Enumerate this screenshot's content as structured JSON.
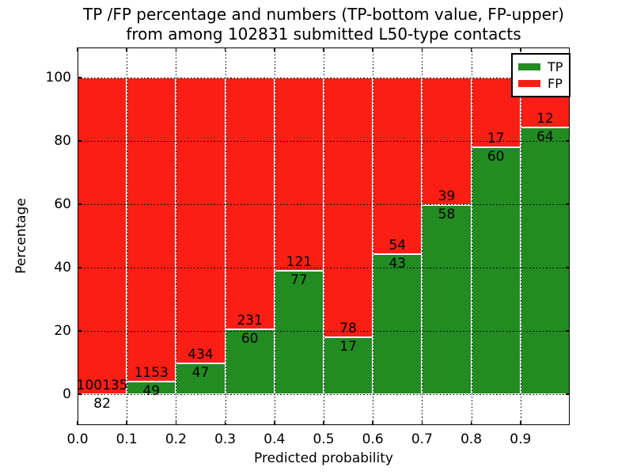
{
  "title": {
    "line1": "TP /FP percentage and numbers (TP-bottom value, FP-upper)",
    "line2": "from among 102831 submitted L50-type contacts"
  },
  "axes": {
    "xlabel": "Predicted probability",
    "ylabel": "Percentage",
    "x_tick_labels": [
      "0.0",
      "0.1",
      "0.2",
      "0.3",
      "0.4",
      "0.5",
      "0.6",
      "0.7",
      "0.8",
      "0.9"
    ],
    "x_tick_values": [
      0.0,
      0.1,
      0.2,
      0.3,
      0.4,
      0.5,
      0.6,
      0.7,
      0.8,
      0.9
    ],
    "y_tick_labels": [
      "0",
      "20",
      "40",
      "60",
      "80",
      "100"
    ],
    "y_tick_values": [
      0,
      20,
      40,
      60,
      80,
      100
    ],
    "xlim": [
      0.0,
      1.0
    ],
    "ylim": [
      -9.75,
      109.5
    ],
    "grid": "dotted black, drawn over bars"
  },
  "legend": {
    "position": "upper right",
    "items": [
      {
        "label": "TP",
        "color": "#228b22"
      },
      {
        "label": "FP",
        "color": "#fb1e15"
      }
    ]
  },
  "chart_data": {
    "type": "bar",
    "stacked": true,
    "normalization": "each bin stacked to 100 percent",
    "bin_width": 0.1,
    "bin_starts": [
      0.0,
      0.1,
      0.2,
      0.3,
      0.4,
      0.5,
      0.6,
      0.7,
      0.8,
      0.9
    ],
    "series": [
      {
        "name": "TP",
        "color": "#228b22",
        "counts": [
          82,
          49,
          47,
          60,
          77,
          17,
          43,
          58,
          60,
          64
        ],
        "percent": [
          0.08,
          4.08,
          9.77,
          20.62,
          38.89,
          17.89,
          44.33,
          59.79,
          77.92,
          84.21
        ]
      },
      {
        "name": "FP",
        "color": "#fb1e15",
        "counts": [
          100135,
          1153,
          434,
          231,
          121,
          78,
          54,
          39,
          17,
          12
        ],
        "percent": [
          99.92,
          95.92,
          90.23,
          79.38,
          61.11,
          82.11,
          55.67,
          40.21,
          22.08,
          15.79
        ]
      }
    ],
    "total_contacts": 102831
  }
}
